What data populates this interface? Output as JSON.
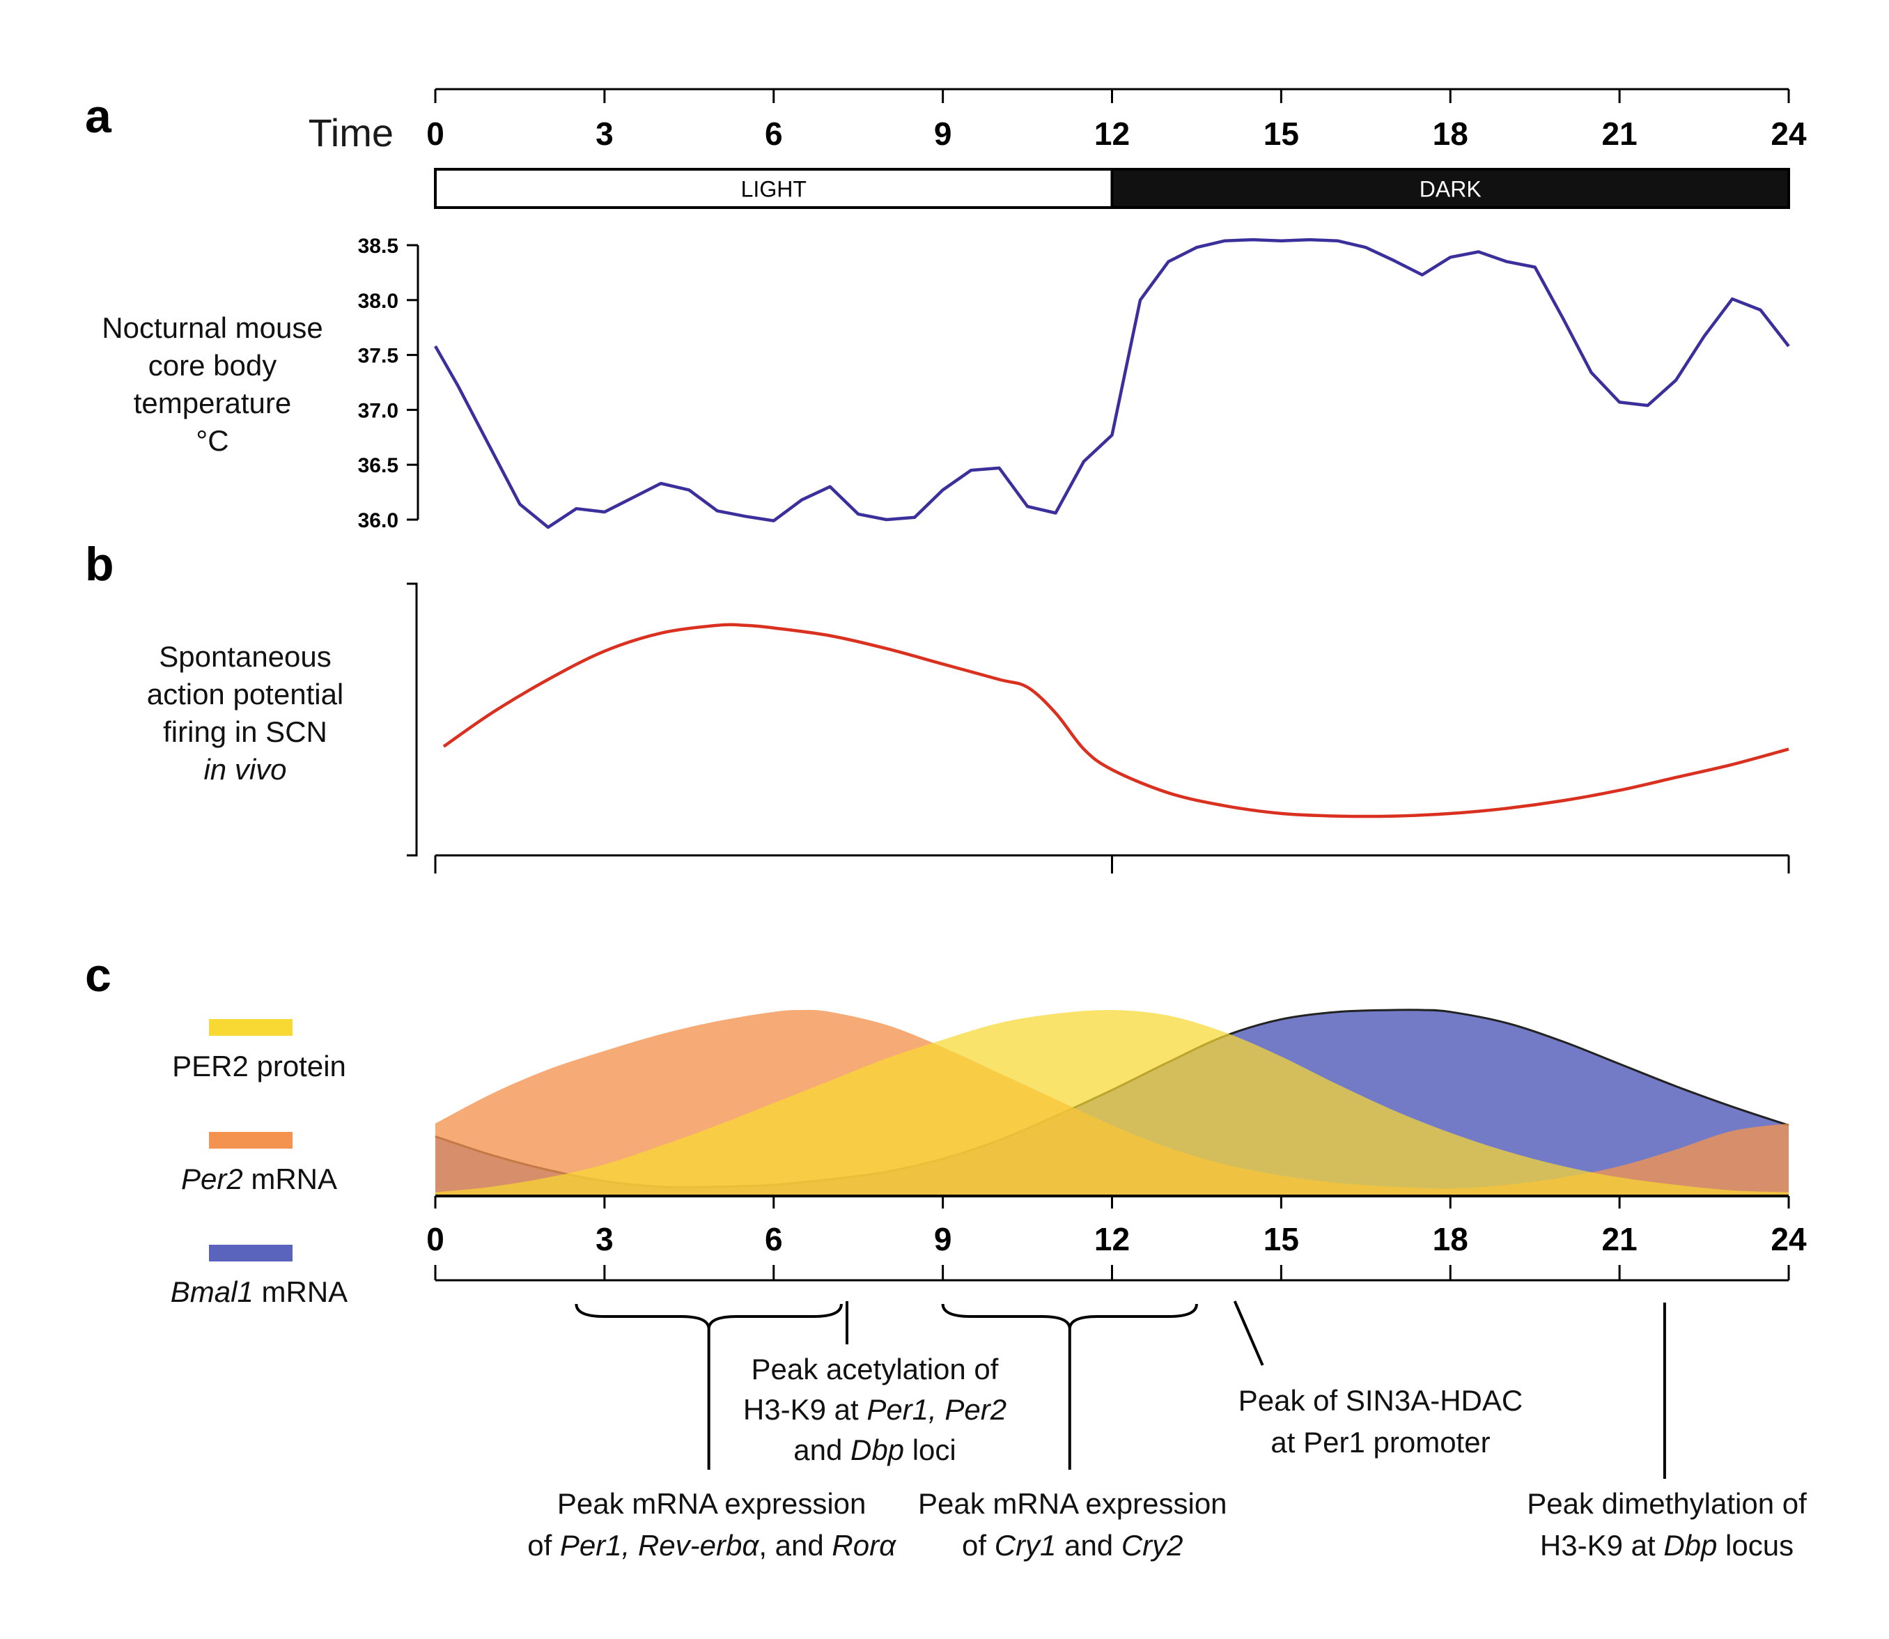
{
  "chart_data": [
    {
      "panel": "a",
      "type": "line",
      "xlabel": "Time",
      "xlim": [
        0,
        24
      ],
      "x_ticks": [
        "0",
        "3",
        "6",
        "9",
        "12",
        "15",
        "18",
        "21",
        "24"
      ],
      "bar_segments": [
        {
          "label": "LIGHT",
          "start": 0,
          "end": 12,
          "fill": "#ffffff",
          "text_color": "#000000"
        },
        {
          "label": "DARK",
          "start": 12,
          "end": 24,
          "fill": "#111111",
          "text_color": "#ffffff"
        }
      ],
      "ylabel_lines": [
        "Nocturnal mouse",
        "core body",
        "temperature",
        "°C"
      ],
      "ylim": [
        36.0,
        38.5
      ],
      "y_ticks": [
        "36.0",
        "36.5",
        "37.0",
        "37.5",
        "38.0",
        "38.5"
      ],
      "series": [
        {
          "color": "#3b2f9b",
          "x": [
            0,
            0.4,
            1,
            1.5,
            2,
            2.5,
            3,
            3.5,
            4,
            4.5,
            5,
            5.5,
            6,
            6.5,
            7,
            7.5,
            8,
            8.5,
            9,
            9.5,
            10,
            10.5,
            11,
            11.5,
            12,
            12.5,
            13,
            13.5,
            14,
            14.5,
            15,
            15.5,
            16,
            16.5,
            17,
            17.5,
            18,
            18.5,
            19,
            19.5,
            20,
            20.5,
            21,
            21.5,
            22,
            22.5,
            23,
            23.5,
            24
          ],
          "y": [
            37.58,
            37.22,
            36.63,
            36.14,
            35.93,
            36.1,
            36.07,
            36.2,
            36.33,
            36.27,
            36.08,
            36.03,
            35.99,
            36.18,
            36.3,
            36.05,
            36.0,
            36.02,
            36.27,
            36.45,
            36.47,
            36.12,
            36.06,
            36.53,
            36.77,
            38.0,
            38.35,
            38.48,
            38.54,
            38.55,
            38.54,
            38.55,
            38.54,
            38.48,
            38.36,
            38.23,
            38.39,
            38.44,
            38.35,
            38.3,
            37.83,
            37.34,
            37.07,
            37.04,
            37.27,
            37.67,
            38.01,
            37.91,
            37.58
          ]
        }
      ]
    },
    {
      "panel": "b",
      "type": "line",
      "ylabel_lines": [
        "Spontaneous",
        "action potential",
        "firing in SCN",
        "in vivo"
      ],
      "xlim": [
        0,
        24
      ],
      "ylim": [
        0,
        1
      ],
      "series": [
        {
          "color": "#d93020",
          "x": [
            0,
            1,
            2,
            3,
            4,
            5,
            5.5,
            6,
            7,
            8,
            9,
            10,
            10.5,
            11,
            11.5,
            12,
            13,
            14,
            15,
            16,
            17,
            18,
            19,
            20,
            21,
            22,
            23,
            24
          ],
          "y": [
            0.39,
            0.52,
            0.65,
            0.76,
            0.83,
            0.86,
            0.86,
            0.85,
            0.82,
            0.77,
            0.71,
            0.65,
            0.62,
            0.52,
            0.38,
            0.3,
            0.21,
            0.16,
            0.13,
            0.12,
            0.12,
            0.13,
            0.15,
            0.18,
            0.22,
            0.27,
            0.32,
            0.38
          ]
        }
      ]
    },
    {
      "panel": "c",
      "type": "area",
      "xlim": [
        0,
        24
      ],
      "ylim": [
        0,
        1
      ],
      "x_ticks": [
        "0",
        "3",
        "6",
        "9",
        "12",
        "15",
        "18",
        "21",
        "24"
      ],
      "legend_position": "left",
      "series": [
        {
          "name": "Per2 mRNA",
          "name_italic": "Per2",
          "name_rest": " mRNA",
          "color": "#f4934f",
          "x": [
            0,
            1,
            2,
            3,
            4,
            5,
            6,
            6.5,
            7,
            8,
            9,
            10,
            11,
            12,
            13,
            14,
            15,
            16,
            17,
            18,
            19,
            20,
            21,
            22,
            23,
            24
          ],
          "y": [
            0.39,
            0.55,
            0.68,
            0.78,
            0.87,
            0.94,
            0.99,
            1.0,
            0.99,
            0.92,
            0.8,
            0.66,
            0.52,
            0.38,
            0.26,
            0.17,
            0.11,
            0.07,
            0.05,
            0.04,
            0.06,
            0.1,
            0.16,
            0.25,
            0.35,
            0.39
          ]
        },
        {
          "name": "PER2 protein",
          "color": "#f8d832",
          "x": [
            0,
            1,
            2,
            3,
            4,
            5,
            6,
            7,
            8,
            9,
            10,
            11,
            12,
            13,
            14,
            15,
            16,
            17,
            18,
            19,
            20,
            21,
            22,
            23,
            24
          ],
          "y": [
            0.02,
            0.05,
            0.1,
            0.17,
            0.27,
            0.38,
            0.5,
            0.62,
            0.74,
            0.84,
            0.93,
            0.98,
            1.0,
            0.97,
            0.88,
            0.75,
            0.6,
            0.46,
            0.34,
            0.24,
            0.16,
            0.1,
            0.06,
            0.03,
            0.02
          ]
        },
        {
          "name": "Bmal1 mRNA",
          "name_italic": "Bmal1",
          "name_rest": " mRNA",
          "color": "#5a64bc",
          "x": [
            0,
            1,
            2,
            3,
            4,
            5,
            6,
            7,
            8,
            9,
            10,
            11,
            12,
            13,
            14,
            15,
            16,
            17,
            17.5,
            18,
            19,
            20,
            21,
            22,
            23,
            24
          ],
          "y": [
            0.32,
            0.22,
            0.14,
            0.08,
            0.05,
            0.05,
            0.06,
            0.09,
            0.13,
            0.2,
            0.3,
            0.43,
            0.57,
            0.72,
            0.86,
            0.95,
            0.99,
            1.0,
            1.0,
            0.99,
            0.93,
            0.83,
            0.71,
            0.59,
            0.48,
            0.38
          ]
        }
      ],
      "annotations": [
        {
          "kind": "brace",
          "from": 2.5,
          "to": 7.2,
          "lines": [
            {
              "runs": [
                {
                  "t": "Peak mRNA expression",
                  "i": false
                }
              ]
            },
            {
              "runs": [
                {
                  "t": "of ",
                  "i": false
                },
                {
                  "t": "Per1, Rev-erbα",
                  "i": true
                },
                {
                  "t": ", and ",
                  "i": false
                },
                {
                  "t": "Rorα",
                  "i": true
                }
              ]
            }
          ]
        },
        {
          "kind": "line",
          "at": 7.3,
          "lines": [
            {
              "runs": [
                {
                  "t": "Peak acetylation of",
                  "i": false
                }
              ]
            },
            {
              "runs": [
                {
                  "t": "H3-K9 at ",
                  "i": false
                },
                {
                  "t": "Per1, Per2",
                  "i": true
                }
              ]
            },
            {
              "runs": [
                {
                  "t": "and ",
                  "i": false
                },
                {
                  "t": "Dbp",
                  "i": true
                },
                {
                  "t": " loci",
                  "i": false
                }
              ]
            }
          ]
        },
        {
          "kind": "brace",
          "from": 9,
          "to": 13.5,
          "lines": [
            {
              "runs": [
                {
                  "t": "Peak mRNA expression",
                  "i": false
                }
              ]
            },
            {
              "runs": [
                {
                  "t": "of ",
                  "i": false
                },
                {
                  "t": "Cry1",
                  "i": true
                },
                {
                  "t": " and ",
                  "i": false
                },
                {
                  "t": "Cry2",
                  "i": true
                }
              ]
            }
          ]
        },
        {
          "kind": "slant",
          "at": 14.3,
          "lines": [
            {
              "runs": [
                {
                  "t": "Peak of SIN3A-HDAC",
                  "i": false
                }
              ]
            },
            {
              "runs": [
                {
                  "t": "at Per1 promoter",
                  "i": false
                }
              ]
            }
          ]
        },
        {
          "kind": "line",
          "at": 21.8,
          "lines": [
            {
              "runs": [
                {
                  "t": "Peak dimethylation of",
                  "i": false
                }
              ]
            },
            {
              "runs": [
                {
                  "t": "H3-K9 at ",
                  "i": false
                },
                {
                  "t": "Dbp",
                  "i": true
                },
                {
                  "t": " locus",
                  "i": false
                }
              ]
            }
          ]
        }
      ]
    }
  ]
}
